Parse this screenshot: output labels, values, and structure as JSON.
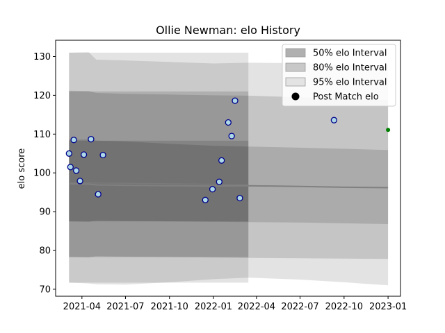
{
  "chart_data": {
    "type": "line",
    "title": "Ollie Newman: elo History",
    "xlabel": "",
    "ylabel": "elo score",
    "x_axis_type": "date",
    "xlim": [
      "2021-02-05",
      "2023-01-27"
    ],
    "ylim": [
      68.2,
      134.2
    ],
    "x_ticks": [
      "2021-04",
      "2021-07",
      "2021-10",
      "2022-01",
      "2022-04",
      "2022-07",
      "2022-10",
      "2023-01"
    ],
    "x_tick_dates": [
      "2021-04-01",
      "2021-07-01",
      "2021-10-01",
      "2022-01-01",
      "2022-04-01",
      "2022-07-01",
      "2022-10-01",
      "2023-01-01"
    ],
    "y_ticks": [
      70,
      80,
      90,
      100,
      110,
      120,
      130
    ],
    "grid": false,
    "legend_position": "top-right",
    "legend": [
      {
        "label": "50% elo Interval",
        "color": "#b0b0b0"
      },
      {
        "label": "80% elo Interval",
        "color": "#c8c8c8"
      },
      {
        "label": "95% elo Interval",
        "color": "#e3e3e3"
      },
      {
        "label": "Post Match elo",
        "color": "#000000"
      }
    ],
    "intervals": {
      "x": [
        "2021-03-05",
        "2021-04-15",
        "2021-05-01",
        "2021-07-01",
        "2021-10-01",
        "2022-01-01",
        "2022-03-15",
        "2022-07-01",
        "2022-10-01",
        "2023-01-01"
      ],
      "median": [
        97.2,
        97.1,
        96.9,
        96.8,
        96.7,
        96.6,
        96.7,
        96.5,
        96.3,
        96.2
      ],
      "p50": {
        "low": [
          87.5,
          87.4,
          87.7,
          87.6,
          87.5,
          87.4,
          87.3,
          87.2,
          87.0,
          86.8
        ],
        "high": [
          108.6,
          108.6,
          108.3,
          108.1,
          107.5,
          107.0,
          106.8,
          106.5,
          106.2,
          105.9
        ]
      },
      "p80": {
        "low": [
          78.3,
          78.2,
          78.5,
          78.4,
          78.3,
          78.2,
          78.1,
          78.0,
          77.9,
          77.8
        ],
        "high": [
          121.2,
          121.1,
          120.6,
          120.4,
          120.2,
          120.0,
          119.9,
          119.5,
          119.0,
          118.8
        ]
      },
      "p95": {
        "low": [
          71.7,
          71.5,
          71.3,
          71.2,
          71.8,
          72.6,
          73.0,
          72.5,
          71.8,
          71.0
        ],
        "high": [
          131.0,
          131.1,
          129.2,
          129.0,
          128.6,
          128.2,
          128.4,
          128.3,
          128.0,
          127.6
        ]
      }
    },
    "shade": {
      "x": [
        "2021-03-05",
        "2022-03-15"
      ],
      "bands": {
        "p50": [
          87.5,
          108.3
        ],
        "p80": [
          78.3,
          121.0
        ],
        "p95": [
          71.7,
          131.0
        ]
      }
    },
    "series": [
      {
        "name": "Post Match elo",
        "marker": "circle",
        "x": [
          "2021-03-05",
          "2021-03-08",
          "2021-03-15",
          "2021-03-20",
          "2021-03-28",
          "2021-04-05",
          "2021-04-20",
          "2021-05-05",
          "2021-05-15",
          "2021-12-15",
          "2021-12-30",
          "2022-01-13",
          "2022-01-18",
          "2022-02-01",
          "2022-02-08",
          "2022-02-15",
          "2022-02-25",
          "2022-09-10"
        ],
        "values": [
          105.0,
          101.5,
          108.5,
          100.6,
          97.9,
          104.7,
          108.7,
          94.5,
          104.6,
          93.0,
          95.8,
          97.7,
          103.2,
          113.0,
          109.5,
          118.6,
          93.5,
          113.6
        ]
      },
      {
        "name": "",
        "marker": "dot",
        "color": "#008000",
        "x": [
          "2023-01-01"
        ],
        "values": [
          111.1
        ]
      }
    ]
  }
}
